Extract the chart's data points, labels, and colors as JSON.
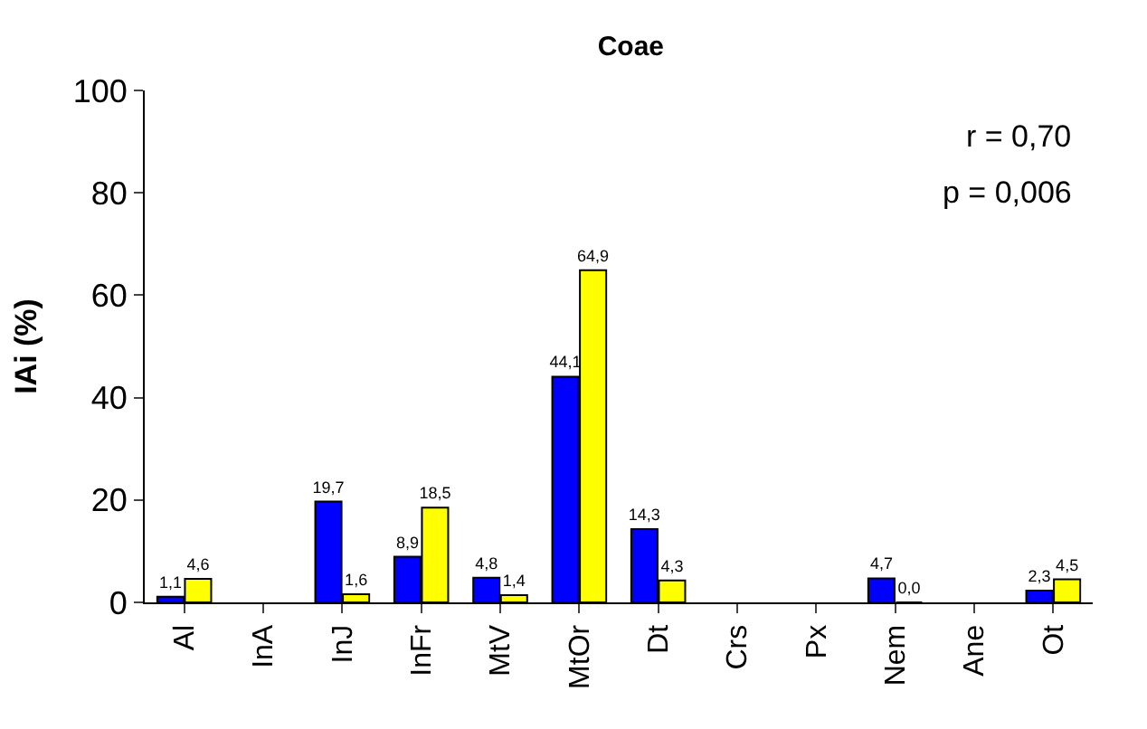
{
  "chart_data": {
    "type": "bar",
    "title": "Coae",
    "ylabel": "IAi (%)",
    "categories": [
      "Al",
      "InA",
      "InJ",
      "InFr",
      "MtV",
      "MtOr",
      "Dt",
      "Crs",
      "Px",
      "Nem",
      "Ane",
      "Ot"
    ],
    "series": [
      {
        "color": "#0000ff",
        "values": [
          1.1,
          null,
          19.7,
          8.9,
          4.8,
          44.1,
          14.3,
          null,
          null,
          4.7,
          null,
          2.3
        ],
        "value_labels": [
          "1,1",
          null,
          "19,7",
          "8,9",
          "4,8",
          "44,1",
          "14,3",
          null,
          null,
          "4,7",
          null,
          "2,3"
        ]
      },
      {
        "color": "#ffff00",
        "values": [
          4.6,
          null,
          1.6,
          18.5,
          1.4,
          64.9,
          4.3,
          null,
          null,
          0.0,
          null,
          4.5
        ],
        "value_labels": [
          "4,6",
          null,
          "1,6",
          "18,5",
          "1,4",
          "64,9",
          "4,3",
          null,
          null,
          "0,0",
          null,
          "4,5"
        ]
      }
    ],
    "ylim": [
      0,
      100
    ],
    "yticks": [
      0,
      20,
      40,
      60,
      80,
      100
    ],
    "annotations": [
      "r = 0,70",
      "p = 0,006"
    ]
  }
}
